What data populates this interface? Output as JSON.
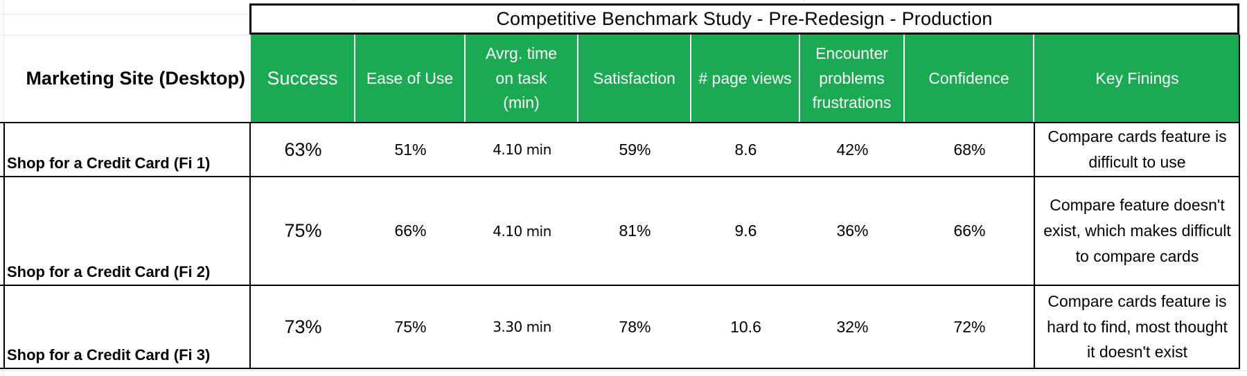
{
  "title": "Competitive Benchmark Study - Pre-Redesign - Production",
  "corner_label": "Marketing Site (Desktop)",
  "columns": [
    "Success",
    "Ease of Use",
    "Avrg. time on task (min)",
    "Satisfaction",
    "# page views",
    "Encounter problems frustrations",
    "Confidence",
    "Key Finings"
  ],
  "rows": [
    {
      "label": "Shop for a Credit Card (Fi 1)",
      "success": "63%",
      "ease": "51%",
      "time": "4.10 min",
      "satisfaction": "59%",
      "page_views": "8.6",
      "problems": "42%",
      "confidence": "68%",
      "finding": "Compare cards feature is difficult to use"
    },
    {
      "label": "Shop for a Credit Card (Fi 2)",
      "success": "75%",
      "ease": "66%",
      "time": "4.10 min",
      "satisfaction": "81%",
      "page_views": "9.6",
      "problems": "36%",
      "confidence": "66%",
      "finding": "Compare feature doesn't exist, which makes difficult to compare cards"
    },
    {
      "label": "Shop for a Credit Card (Fi 3)",
      "success": "73%",
      "ease": "75%",
      "time": "3.30 min",
      "satisfaction": "78%",
      "page_views": "10.6",
      "problems": "32%",
      "confidence": "72%",
      "finding": "Compare cards feature is hard to find, most thought it doesn't exist"
    }
  ],
  "colors": {
    "header_green": "#1aab52",
    "header_text": "#ffffff",
    "gridline": "#e4e4e4"
  }
}
